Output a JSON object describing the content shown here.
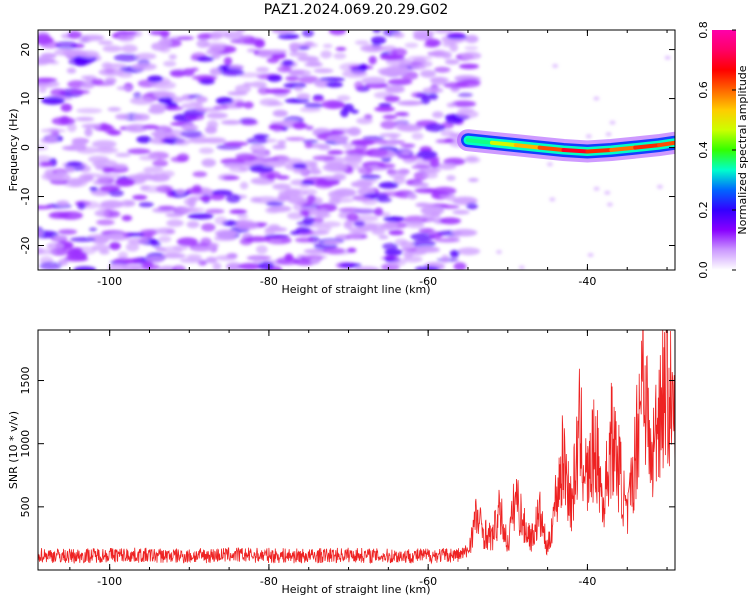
{
  "figure": {
    "title": "PAZ1.2024.069.20.29.G02"
  },
  "chart_data": [
    {
      "type": "heatmap",
      "title": "",
      "xlabel": "Height of straight line (km)",
      "ylabel": "Frequency (Hz)",
      "xlim": [
        -109,
        -29
      ],
      "ylim": [
        -25,
        24
      ],
      "xticks": [
        -100,
        -80,
        -60,
        -40
      ],
      "yticks": [
        -20,
        -10,
        0,
        10,
        20
      ],
      "xtick_labels": [
        "-100",
        "-80",
        "-60",
        "-40"
      ],
      "ytick_labels": [
        "-20",
        "-10",
        "0",
        "10",
        "20"
      ],
      "colorbar": {
        "label": "Normalized spectral amplitude",
        "range": [
          0.0,
          0.8
        ],
        "ticks": [
          0.0,
          0.2,
          0.4,
          0.6,
          0.8
        ],
        "tick_labels": [
          "0.0",
          "0.2",
          "0.4",
          "0.6",
          "0.8"
        ],
        "colormap": [
          "#ffffff",
          "#cc99ff",
          "#8800ff",
          "#3300ff",
          "#0066ff",
          "#00ffcc",
          "#33ff00",
          "#ccff00",
          "#ffcc00",
          "#ff6600",
          "#ff0000",
          "#ff0066",
          "#ff00aa"
        ]
      },
      "noise_region": {
        "x_range": [
          -109,
          -55
        ],
        "freq_range": [
          -25,
          24
        ],
        "level": 0.1
      },
      "signal_ridge": {
        "x": [
          -55,
          -52,
          -49,
          -46,
          -43,
          -40,
          -37,
          -34,
          -31,
          -29
        ],
        "frequency": [
          1.5,
          1.0,
          0.5,
          0.0,
          -0.5,
          -0.8,
          -0.5,
          0.0,
          0.5,
          1.0
        ],
        "amplitude": [
          0.3,
          0.45,
          0.55,
          0.6,
          0.7,
          0.75,
          0.6,
          0.65,
          0.7,
          0.6
        ]
      }
    },
    {
      "type": "line",
      "title": "",
      "xlabel": "Height of straight line (km)",
      "ylabel": "SNR (10 * v/v)",
      "xlim": [
        -109,
        -29
      ],
      "ylim": [
        0,
        1900
      ],
      "xticks": [
        -100,
        -80,
        -60,
        -40
      ],
      "yticks": [
        500,
        1000,
        1500
      ],
      "xtick_labels": [
        "-100",
        "-80",
        "-60",
        "-40"
      ],
      "ytick_labels": [
        "500",
        "1000",
        "1500"
      ],
      "color": "#ee2222",
      "series": [
        {
          "x": [
            -109,
            -105,
            -100,
            -95,
            -90,
            -85,
            -80,
            -75,
            -70,
            -65,
            -60,
            -56,
            -55,
            -54,
            -53,
            -52,
            -51,
            -50,
            -49,
            -48,
            -47,
            -46,
            -45,
            -44,
            -43,
            -42,
            -41,
            -40,
            -39,
            -38,
            -37,
            -36,
            -35,
            -34,
            -33,
            -32,
            -31,
            -30,
            -29
          ],
          "values": [
            120,
            110,
            120,
            115,
            110,
            120,
            115,
            110,
            120,
            110,
            115,
            120,
            150,
            420,
            300,
            250,
            460,
            200,
            600,
            350,
            250,
            450,
            150,
            550,
            900,
            500,
            1100,
            700,
            1000,
            500,
            1050,
            800,
            400,
            900,
            1700,
            800,
            1300,
            1500,
            1100
          ]
        }
      ]
    }
  ]
}
